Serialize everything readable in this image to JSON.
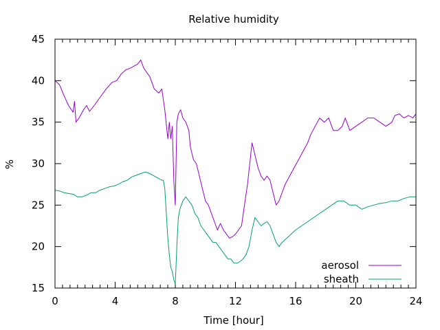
{
  "chart_data": {
    "type": "line",
    "title": "Relative humidity",
    "xlabel": "Time [hour]",
    "ylabel": "%",
    "xlim": [
      0,
      24
    ],
    "ylim": [
      15,
      45
    ],
    "xticks": [
      0,
      4,
      8,
      12,
      16,
      20,
      24
    ],
    "yticks": [
      15,
      20,
      25,
      30,
      35,
      40,
      45
    ],
    "grid": false,
    "legend_position": "bottom-right",
    "series": [
      {
        "name": "aerosol",
        "color": "#9400d3",
        "x": [
          0,
          0.3,
          0.6,
          0.9,
          1.2,
          1.3,
          1.4,
          1.6,
          1.9,
          2.1,
          2.3,
          2.6,
          3.0,
          3.4,
          3.8,
          4.1,
          4.4,
          4.7,
          5.0,
          5.3,
          5.5,
          5.7,
          5.9,
          6.1,
          6.3,
          6.6,
          6.9,
          7.1,
          7.3,
          7.5,
          7.6,
          7.7,
          7.8,
          7.9,
          8.0,
          8.1,
          8.2,
          8.35,
          8.5,
          8.7,
          8.9,
          9.0,
          9.2,
          9.4,
          9.6,
          9.8,
          10.0,
          10.2,
          10.4,
          10.6,
          10.8,
          11.0,
          11.2,
          11.4,
          11.6,
          11.8,
          12.0,
          12.2,
          12.4,
          12.6,
          12.8,
          12.95,
          13.1,
          13.3,
          13.5,
          13.7,
          13.9,
          14.1,
          14.3,
          14.5,
          14.7,
          14.9,
          15.1,
          15.3,
          15.6,
          15.9,
          16.2,
          16.5,
          16.8,
          17.0,
          17.3,
          17.6,
          17.9,
          18.2,
          18.5,
          18.8,
          19.1,
          19.3,
          19.6,
          20.0,
          20.4,
          20.8,
          21.2,
          21.6,
          22.0,
          22.4,
          22.6,
          22.9,
          23.2,
          23.5,
          23.8,
          24.0
        ],
        "values": [
          40.0,
          39.5,
          38.2,
          37.0,
          36.2,
          37.5,
          35.0,
          35.5,
          36.5,
          37.0,
          36.3,
          37.0,
          38.0,
          39.0,
          39.8,
          40.0,
          40.8,
          41.3,
          41.5,
          41.8,
          42.0,
          42.5,
          41.5,
          41.0,
          40.5,
          39.0,
          38.5,
          39.0,
          36.5,
          33.0,
          35.0,
          33.0,
          34.5,
          28.0,
          25.0,
          35.0,
          36.0,
          36.5,
          35.5,
          35.0,
          34.0,
          32.0,
          30.5,
          30.0,
          28.5,
          27.0,
          25.5,
          25.0,
          24.0,
          23.0,
          22.0,
          22.8,
          22.0,
          21.5,
          21.0,
          21.2,
          21.5,
          22.0,
          22.5,
          25.0,
          27.5,
          30.0,
          32.5,
          31.0,
          29.5,
          28.5,
          28.0,
          28.5,
          28.0,
          26.5,
          25.0,
          25.5,
          26.5,
          27.5,
          28.5,
          29.5,
          30.5,
          31.5,
          32.5,
          33.5,
          34.5,
          35.5,
          35.0,
          35.5,
          34.0,
          34.0,
          34.5,
          35.5,
          34.0,
          34.5,
          35.0,
          35.5,
          35.5,
          35.0,
          34.5,
          35.0,
          35.8,
          36.0,
          35.5,
          35.8,
          35.5,
          36.0
        ]
      },
      {
        "name": "sheath",
        "color": "#009e73",
        "x": [
          0,
          0.3,
          0.6,
          0.9,
          1.2,
          1.5,
          1.8,
          2.1,
          2.4,
          2.7,
          3.0,
          3.3,
          3.6,
          3.9,
          4.2,
          4.5,
          4.8,
          5.1,
          5.4,
          5.7,
          6.0,
          6.3,
          6.6,
          6.9,
          7.1,
          7.2,
          7.3,
          7.4,
          7.5,
          7.6,
          7.7,
          7.8,
          7.9,
          8.0,
          8.1,
          8.2,
          8.3,
          8.5,
          8.7,
          8.9,
          9.1,
          9.3,
          9.5,
          9.7,
          9.9,
          10.1,
          10.3,
          10.5,
          10.7,
          10.9,
          11.1,
          11.3,
          11.5,
          11.7,
          11.9,
          12.1,
          12.3,
          12.5,
          12.7,
          12.9,
          13.1,
          13.3,
          13.5,
          13.7,
          13.9,
          14.1,
          14.3,
          14.5,
          14.7,
          14.9,
          15.1,
          15.4,
          15.7,
          16.0,
          16.4,
          16.8,
          17.2,
          17.6,
          18.0,
          18.4,
          18.8,
          19.2,
          19.6,
          20.0,
          20.4,
          20.8,
          21.2,
          21.6,
          22.0,
          22.4,
          22.8,
          23.2,
          23.6,
          24.0
        ],
        "values": [
          26.8,
          26.7,
          26.5,
          26.4,
          26.3,
          26.0,
          26.0,
          26.2,
          26.5,
          26.5,
          26.8,
          27.0,
          27.2,
          27.3,
          27.5,
          27.8,
          28.0,
          28.4,
          28.6,
          28.8,
          29.0,
          28.8,
          28.5,
          28.2,
          28.0,
          28.0,
          27.0,
          24.0,
          21.0,
          19.0,
          17.5,
          17.0,
          16.0,
          15.5,
          20.0,
          23.5,
          24.5,
          25.5,
          26.0,
          25.5,
          25.0,
          24.0,
          23.5,
          22.5,
          22.0,
          21.5,
          21.0,
          20.5,
          20.5,
          20.0,
          19.5,
          19.0,
          18.5,
          18.5,
          18.0,
          18.0,
          18.2,
          18.5,
          19.0,
          20.0,
          22.0,
          23.5,
          23.0,
          22.5,
          22.8,
          23.0,
          22.5,
          21.5,
          20.5,
          20.0,
          20.5,
          21.0,
          21.5,
          22.0,
          22.5,
          23.0,
          23.5,
          24.0,
          24.5,
          25.0,
          25.5,
          25.5,
          25.0,
          25.0,
          24.5,
          24.8,
          25.0,
          25.2,
          25.3,
          25.5,
          25.5,
          25.8,
          26.0,
          26.0
        ]
      }
    ]
  }
}
